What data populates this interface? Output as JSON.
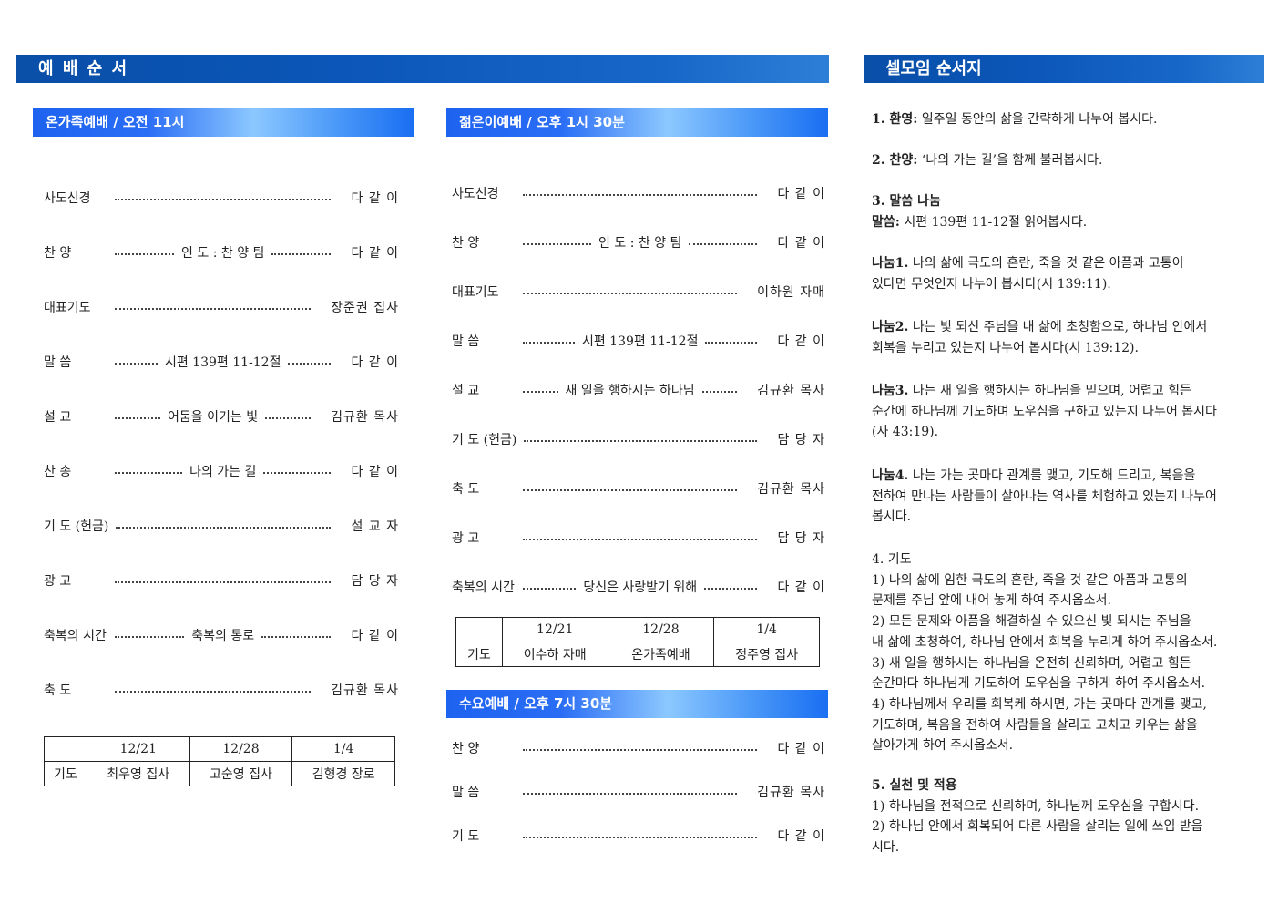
{
  "header": {
    "worship_order": "예 배 순 서",
    "cell_order": "셀모임 순서지"
  },
  "sunday_family": {
    "title": "온가족예배 / 오전 11시",
    "rows": [
      {
        "label": "사도신경",
        "middle": "",
        "right": "다 같 이"
      },
      {
        "label": "찬 양",
        "middle": "인 도 : 찬 양 팀",
        "right": "다 같 이"
      },
      {
        "label": "대표기도",
        "middle": "",
        "right": "장준권 집사"
      },
      {
        "label": "말 씀",
        "middle": "시편 139편 11-12절",
        "right": "다 같 이"
      },
      {
        "label": "설 교",
        "middle": "어둠을 이기는 빛",
        "right": "김규환 목사"
      },
      {
        "label": "찬 송",
        "middle": "나의 가는 길",
        "right": "다 같 이"
      },
      {
        "label": "기 도 (헌금)",
        "middle": "",
        "right": "설 교 자"
      },
      {
        "label": "광 고",
        "middle": "",
        "right": "담 당 자"
      },
      {
        "label": "축복의 시간",
        "middle": "축복의 통로",
        "right": "다 같 이"
      },
      {
        "label": "축 도",
        "middle": "",
        "right": "김규환 목사"
      }
    ],
    "prayer_table": {
      "dates": [
        "12/21",
        "12/28",
        "1/4"
      ],
      "row_label": "기도",
      "names": [
        "최우영 집사",
        "고순영 집사",
        "김형경 장로"
      ]
    }
  },
  "youth": {
    "title": "젊은이예배 / 오후 1시 30분",
    "rows": [
      {
        "label": "사도신경",
        "middle": "",
        "right": "다 같 이"
      },
      {
        "label": "찬 양",
        "middle": "인 도 : 찬 양 팀",
        "right": "다 같 이"
      },
      {
        "label": "대표기도",
        "middle": "",
        "right": "이하원 자매"
      },
      {
        "label": "말 씀",
        "middle": "시편 139편 11-12절",
        "right": "다 같 이"
      },
      {
        "label": "설 교",
        "middle": "새 일을 행하시는 하나님",
        "right": "김규환 목사"
      },
      {
        "label": "기 도 (헌금)",
        "middle": "",
        "right": "담 당 자"
      },
      {
        "label": "축 도",
        "middle": "",
        "right": "김규환 목사"
      },
      {
        "label": "광 고",
        "middle": "",
        "right": "담 당 자"
      },
      {
        "label": "축복의 시간",
        "middle": "당신은 사랑받기 위해",
        "right": "다 같 이"
      }
    ],
    "prayer_table": {
      "dates": [
        "12/21",
        "12/28",
        "1/4"
      ],
      "row_label": "기도",
      "names": [
        "이수하 자매",
        "온가족예배",
        "정주영 집사"
      ]
    }
  },
  "wednesday": {
    "title": "수요예배 / 오후 7시 30분",
    "rows": [
      {
        "label": "찬 양",
        "middle": "",
        "right": "다 같 이"
      },
      {
        "label": "말 씀",
        "middle": "",
        "right": "김규환 목사"
      },
      {
        "label": "기 도",
        "middle": "",
        "right": "다 같 이"
      }
    ]
  },
  "cell": {
    "blocks": [
      {
        "lines": [
          {
            "b": "1. 환영:",
            "t": " 일주일 동안의 삶을 간략하게 나누어 봅시다."
          }
        ]
      },
      {
        "lines": [
          {
            "b": "2. 찬양:",
            "t": " ‘나의 가는 길’을 함께 불러봅시다."
          }
        ]
      },
      {
        "lines": [
          {
            "b": "3. 말씀 나눔",
            "t": ""
          },
          {
            "b": "말씀:",
            "t": " 시편 139편 11-12절 읽어봅시다."
          }
        ]
      },
      {
        "lines": [
          {
            "b": "나눔1.",
            "t": " 나의 삶에 극도의 혼란, 죽을 것 같은 아픔과 고통이"
          },
          {
            "b": "",
            "t": "있다면 무엇인지 나누어 봅시다(시 139:11)."
          }
        ]
      },
      {
        "lines": [
          {
            "b": "나눔2.",
            "t": " 나는 빛 되신 주님을 내 삶에 초청함으로, 하나님 안에서"
          },
          {
            "b": "",
            "t": "회복을 누리고 있는지 나누어 봅시다(시 139:12)."
          }
        ]
      },
      {
        "lines": [
          {
            "b": "나눔3.",
            "t": " 나는 새 일을 행하시는 하나님을 믿으며, 어렵고 힘든"
          },
          {
            "b": "",
            "t": "순간에 하나님께 기도하며 도우심을 구하고 있는지 나누어 봅시다"
          },
          {
            "b": "",
            "t": "(사 43:19)."
          }
        ]
      },
      {
        "lines": [
          {
            "b": "나눔4.",
            "t": " 나는 가는 곳마다 관계를 맺고, 기도해 드리고, 복음을"
          },
          {
            "b": "",
            "t": "전하여 만나는 사람들이 살아나는 역사를 체험하고 있는지 나누어"
          },
          {
            "b": "",
            "t": "봅시다."
          }
        ]
      },
      {
        "lines": [
          {
            "b": "",
            "t": "4. 기도"
          },
          {
            "b": "",
            "t": "1) 나의 삶에 임한 극도의 혼란, 죽을 것 같은 아픔과 고통의"
          },
          {
            "b": "",
            "t": "문제를 주님 앞에 내어 놓게 하여 주시옵소서."
          },
          {
            "b": "",
            "t": "2) 모든 문제와 아픔을 해결하실 수 있으신 빛 되시는 주님을"
          },
          {
            "b": "",
            "t": "내 삶에 초청하여, 하나님 안에서 회복을 누리게 하여 주시옵소서."
          },
          {
            "b": "",
            "t": "3) 새 일을 행하시는 하나님을 온전히 신뢰하며, 어렵고 힘든"
          },
          {
            "b": "",
            "t": "순간마다 하나님게 기도하여 도우심을 구하게 하여 주시옵소서."
          },
          {
            "b": "",
            "t": "4) 하나님께서 우리를 회복케 하시면, 가는 곳마다 관계를 맺고,"
          },
          {
            "b": "",
            "t": "기도하며, 복음을 전하여 사람들을 살리고 고치고 키우는 삶을"
          },
          {
            "b": "",
            "t": "살아가게 하여 주시옵소서."
          }
        ]
      },
      {
        "lines": [
          {
            "b": "5. 실천 및 적용",
            "t": ""
          },
          {
            "b": "",
            "t": "1) 하나님을 전적으로 신뢰하며, 하나님께 도우심을 구합시다."
          },
          {
            "b": "",
            "t": "2) 하나님 안에서 회복되어 다른 사람을 살리는 일에 쓰임 받읍"
          },
          {
            "b": "",
            "t": "시다."
          }
        ]
      }
    ]
  },
  "colors": {
    "header_dark": "#0b56b8",
    "header_sub": "#1e63f0",
    "header_highlight": "#8cc8ff"
  }
}
